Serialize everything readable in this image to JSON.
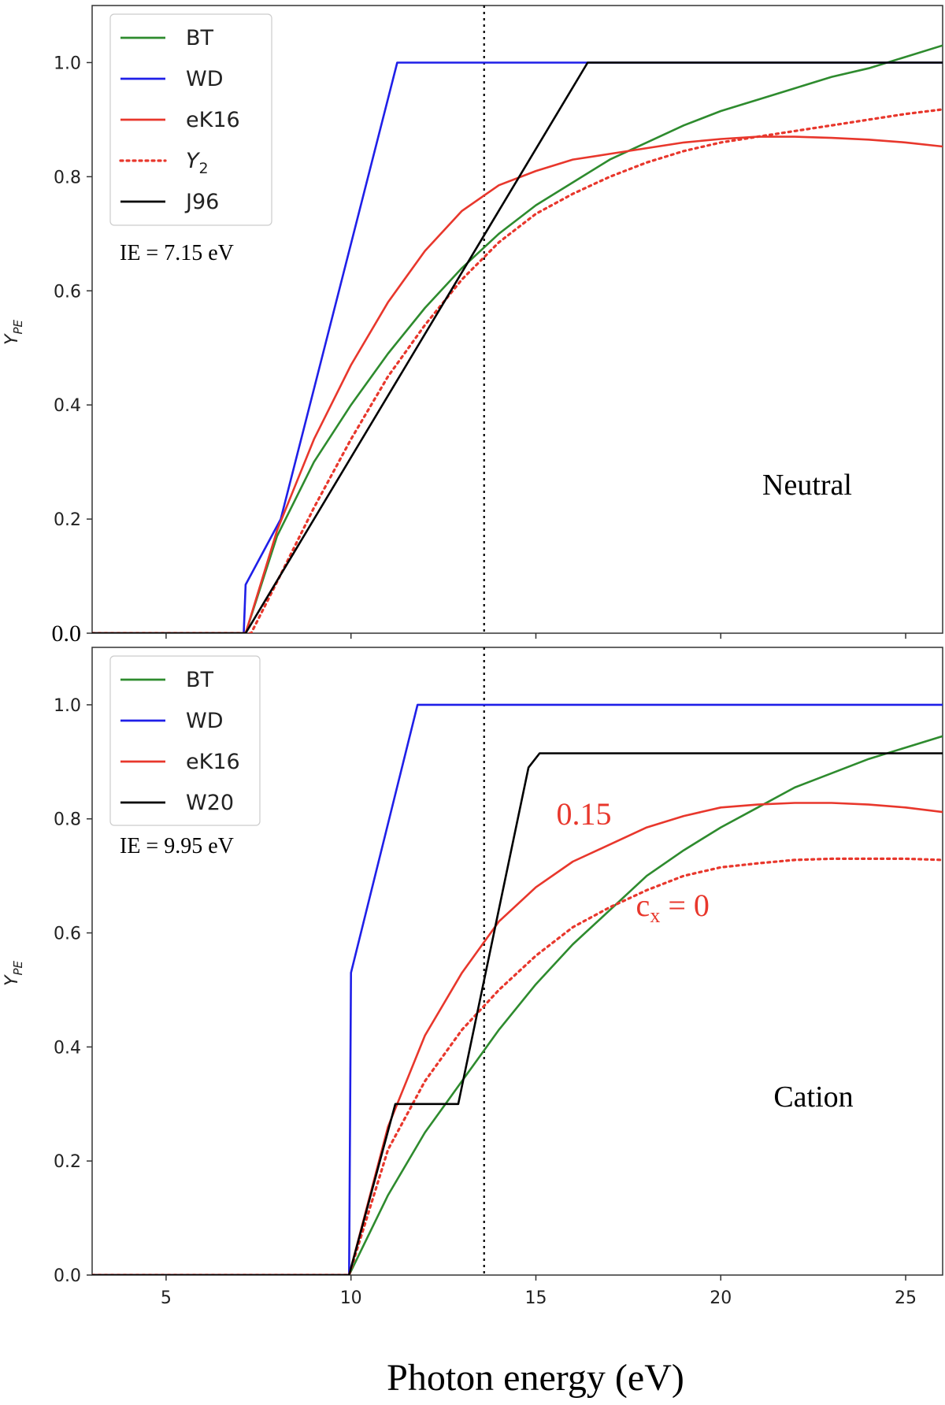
{
  "figure": {
    "xlabel": "Photon energy (eV)"
  },
  "chart_data": [
    {
      "type": "line",
      "panel": "top",
      "annotation": "Neutral",
      "ie_label": "IE = 7.15 eV",
      "ylabel": "Y_PE",
      "xlim": [
        3,
        26
      ],
      "ylim": [
        0,
        1.1
      ],
      "yticks": [
        0.0,
        0.2,
        0.4,
        0.6,
        0.8,
        1.0
      ],
      "ytick_labels": [
        "0.0",
        "0.2",
        "0.4",
        "0.6",
        "0.8",
        "1.0"
      ],
      "vline_x": 13.6,
      "legend_position": "top-left",
      "series": [
        {
          "name": "BT",
          "color": "#2e8b2e",
          "dash": "solid",
          "x": [
            3,
            7.15,
            8,
            9,
            10,
            11,
            12,
            13,
            14,
            15,
            16,
            17,
            18,
            19,
            20,
            21,
            22,
            23,
            24,
            25,
            26
          ],
          "y": [
            0,
            0,
            0.17,
            0.3,
            0.4,
            0.49,
            0.57,
            0.64,
            0.7,
            0.75,
            0.79,
            0.83,
            0.86,
            0.89,
            0.915,
            0.935,
            0.955,
            0.975,
            0.99,
            1.01,
            1.03
          ]
        },
        {
          "name": "WD",
          "color": "#1f1fe8",
          "dash": "solid",
          "x": [
            3,
            7.1,
            7.15,
            8.1,
            11.25,
            26
          ],
          "y": [
            0,
            0,
            0.085,
            0.2,
            1.0,
            1.0
          ]
        },
        {
          "name": "eK16",
          "color": "#e8372c",
          "dash": "solid",
          "x": [
            3,
            7.15,
            8,
            9,
            10,
            11,
            12,
            13,
            14,
            15,
            16,
            17,
            18,
            19,
            20,
            21,
            22,
            23,
            24,
            25,
            26
          ],
          "y": [
            0,
            0,
            0.18,
            0.34,
            0.47,
            0.58,
            0.67,
            0.74,
            0.785,
            0.81,
            0.83,
            0.84,
            0.85,
            0.86,
            0.866,
            0.87,
            0.87,
            0.868,
            0.865,
            0.86,
            0.853
          ]
        },
        {
          "name": "Y_2",
          "color": "#e8372c",
          "dash": "dotted",
          "x": [
            3,
            7.3,
            8,
            9,
            10,
            11,
            12,
            13,
            14,
            15,
            16,
            17,
            18,
            19,
            20,
            21,
            22,
            23,
            24,
            25,
            26
          ],
          "y": [
            0,
            0,
            0.09,
            0.22,
            0.34,
            0.45,
            0.54,
            0.62,
            0.685,
            0.735,
            0.77,
            0.8,
            0.825,
            0.845,
            0.86,
            0.87,
            0.88,
            0.89,
            0.9,
            0.91,
            0.918
          ]
        },
        {
          "name": "J96",
          "color": "#000000",
          "dash": "solid",
          "x": [
            3,
            7.15,
            16.4,
            26
          ],
          "y": [
            0,
            0,
            1.0,
            1.0
          ]
        }
      ]
    },
    {
      "type": "line",
      "panel": "bottom",
      "annotation": "Cation",
      "ie_label": "IE = 9.95 eV",
      "ylabel": "Y_PE",
      "xlabel": "Photon energy (eV)",
      "xlim": [
        3,
        26
      ],
      "ylim": [
        0,
        1.08
      ],
      "yticks": [
        0.0,
        0.2,
        0.4,
        0.6,
        0.8,
        1.0
      ],
      "ytick_labels": [
        "0.0",
        "0.2",
        "0.4",
        "0.6",
        "0.8",
        "1.0"
      ],
      "xticks": [
        5,
        10,
        15,
        20,
        25
      ],
      "xtick_labels": [
        "5",
        "10",
        "15",
        "20",
        "25"
      ],
      "vline_x": 13.6,
      "legend_position": "top-left",
      "curve_labels": [
        {
          "text": "0.15",
          "x": 16.3,
          "y": 0.79
        },
        {
          "text": "c",
          "subscript": "x",
          "suffix": " = 0",
          "x": 18.7,
          "y": 0.63
        }
      ],
      "series": [
        {
          "name": "BT",
          "color": "#2e8b2e",
          "dash": "solid",
          "x": [
            3,
            9.95,
            11,
            12,
            13,
            14,
            15,
            16,
            17,
            18,
            19,
            20,
            21,
            22,
            23,
            24,
            25,
            26
          ],
          "y": [
            0,
            0,
            0.14,
            0.25,
            0.34,
            0.43,
            0.51,
            0.58,
            0.64,
            0.7,
            0.745,
            0.785,
            0.82,
            0.855,
            0.88,
            0.905,
            0.925,
            0.945
          ]
        },
        {
          "name": "WD",
          "color": "#1f1fe8",
          "dash": "solid",
          "x": [
            3,
            9.9,
            9.95,
            10.0,
            11.8,
            12.0,
            26
          ],
          "y": [
            0,
            0,
            0.0,
            0.53,
            1.0,
            1.0,
            1.0
          ]
        },
        {
          "name": "eK16",
          "color": "#e8372c",
          "dash": "solid",
          "x": [
            3,
            9.95,
            11,
            12,
            13,
            14,
            15,
            16,
            17,
            18,
            19,
            20,
            21,
            22,
            23,
            24,
            25,
            26
          ],
          "y": [
            0,
            0,
            0.26,
            0.42,
            0.53,
            0.62,
            0.68,
            0.725,
            0.755,
            0.785,
            0.805,
            0.82,
            0.825,
            0.828,
            0.828,
            0.825,
            0.82,
            0.812
          ]
        },
        {
          "name": "Y_2",
          "color": "#e8372c",
          "dash": "dotted",
          "legend": false,
          "x": [
            3,
            9.95,
            11,
            12,
            13,
            14,
            15,
            16,
            17,
            18,
            19,
            20,
            21,
            22,
            23,
            24,
            25,
            26
          ],
          "y": [
            0,
            0,
            0.22,
            0.34,
            0.43,
            0.5,
            0.56,
            0.61,
            0.645,
            0.675,
            0.7,
            0.715,
            0.722,
            0.728,
            0.73,
            0.73,
            0.73,
            0.728
          ]
        },
        {
          "name": "W20",
          "color": "#000000",
          "dash": "solid",
          "x": [
            3,
            9.95,
            11.2,
            12.9,
            14.8,
            15.1,
            26
          ],
          "y": [
            0,
            0,
            0.3,
            0.3,
            0.89,
            0.915,
            0.915
          ]
        }
      ]
    }
  ]
}
